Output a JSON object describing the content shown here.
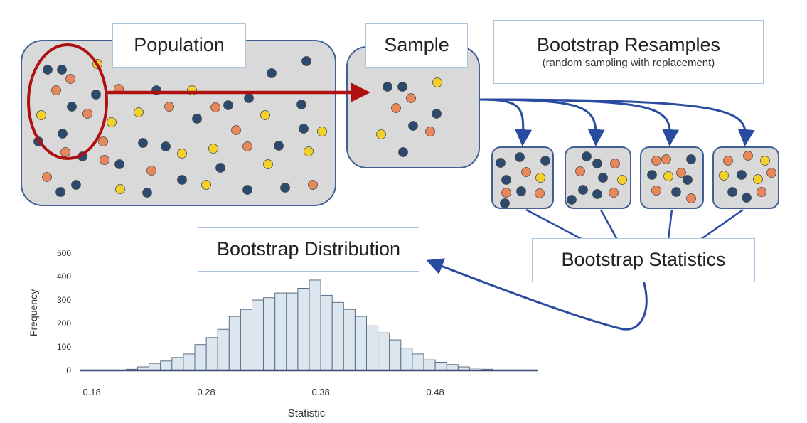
{
  "labels": {
    "population": "Population",
    "sample": "Sample",
    "resamples_title": "Bootstrap Resamples",
    "resamples_subtitle": "(random sampling with replacement)",
    "distribution": "Bootstrap Distribution",
    "statistics": "Bootstrap Statistics"
  },
  "colors": {
    "navy": "#2c4a6e",
    "orange": "#e8875a",
    "yellow": "#f2d12b",
    "box_fill": "#d9d9d9",
    "box_border": "#3f5f95",
    "label_border": "#a9c4e0",
    "red": "#b01010",
    "arrow_blue": "#2a4ca0",
    "bar_fill": "#dce6ef",
    "bar_stroke": "#5a6f87"
  },
  "chart_data": {
    "type": "bar",
    "xlabel": "Statistic",
    "ylabel": "Frequency",
    "ylim": [
      0,
      500
    ],
    "xlim": [
      0.17,
      0.57
    ],
    "yticks": [
      "0",
      "100",
      "200",
      "300",
      "400",
      "500"
    ],
    "xticks": [
      "0.18",
      "0.28",
      "0.38",
      "0.48"
    ],
    "bin_width": 0.01,
    "bin_starts": [
      0.21,
      0.22,
      0.23,
      0.24,
      0.25,
      0.26,
      0.27,
      0.28,
      0.29,
      0.3,
      0.31,
      0.32,
      0.33,
      0.34,
      0.35,
      0.36,
      0.37,
      0.38,
      0.39,
      0.4,
      0.41,
      0.42,
      0.43,
      0.44,
      0.45,
      0.46,
      0.47,
      0.48,
      0.49,
      0.5,
      0.51,
      0.52
    ],
    "values": [
      5,
      15,
      30,
      40,
      55,
      70,
      110,
      140,
      175,
      230,
      260,
      300,
      310,
      330,
      330,
      350,
      385,
      320,
      290,
      260,
      230,
      190,
      160,
      130,
      95,
      70,
      45,
      35,
      25,
      15,
      10,
      5
    ]
  }
}
